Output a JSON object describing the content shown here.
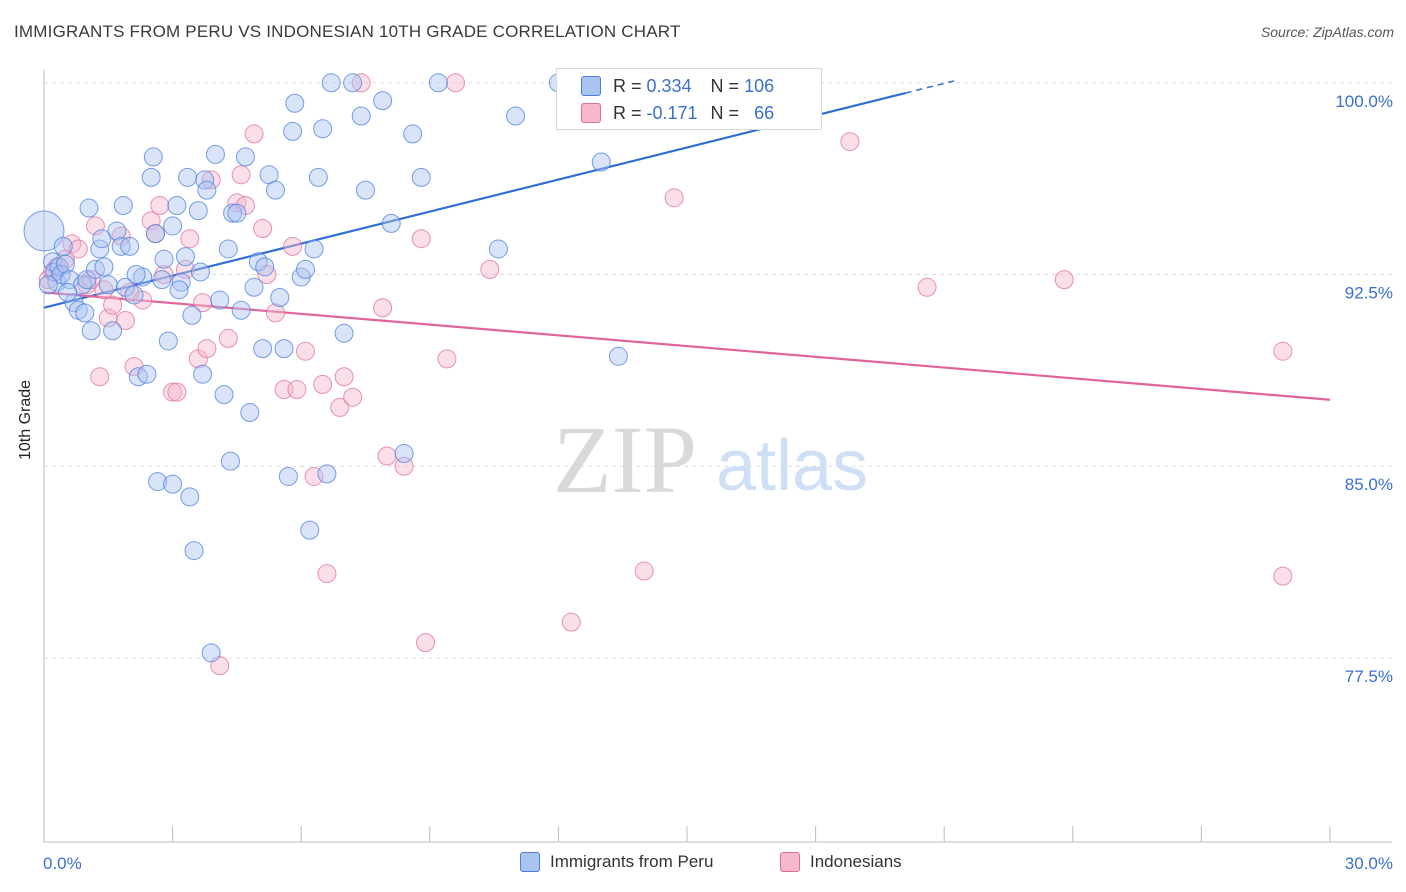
{
  "title": "IMMIGRANTS FROM PERU VS INDONESIAN 10TH GRADE CORRELATION CHART",
  "source": "Source: ZipAtlas.com",
  "colors": {
    "blue": "#4a7fe0",
    "blue_fill": "#aac4f2",
    "pink": "#e26d9b",
    "pink_fill": "#f5b8cc",
    "tick_label": "#3a6fd0"
  },
  "legend_stats": {
    "blue": {
      "r_label": "R =",
      "r_value": "0.334",
      "n_label": "N =",
      "n_value": "106"
    },
    "pink": {
      "r_label": "R =",
      "r_value": "-0.171",
      "n_label": "N =",
      "n_value": "66"
    }
  },
  "chart_data": {
    "type": "scatter",
    "title": "IMMIGRANTS FROM PERU VS INDONESIAN 10TH GRADE CORRELATION CHART",
    "xlabel": "",
    "ylabel": "10th Grade",
    "xlim": [
      0,
      30
    ],
    "ylim": [
      70.3,
      100.5
    ],
    "x_tick_labels": [
      "0.0%",
      "30.0%"
    ],
    "y_ticks": [
      {
        "value": 100.0,
        "label": "100.0%"
      },
      {
        "value": 92.5,
        "label": "92.5%"
      },
      {
        "value": 85.0,
        "label": "85.0%"
      },
      {
        "value": 77.5,
        "label": "77.5%"
      }
    ],
    "grid": true,
    "legend_position": "bottom",
    "watermark": {
      "zip": "ZIP",
      "atlas": "atlas"
    },
    "series": [
      {
        "name": "Immigrants from Peru",
        "color": "#4a7fe0",
        "trend": {
          "x0": 0.0,
          "y0": 91.2,
          "x1": 20.1,
          "y1": 99.6,
          "dash_to_x": 21.3,
          "dash_to_y": 100.1
        },
        "points": [
          [
            0.0,
            94.2
          ],
          [
            0.2,
            93.0
          ],
          [
            0.25,
            92.6
          ],
          [
            0.3,
            92.2
          ],
          [
            0.35,
            92.8
          ],
          [
            0.4,
            92.5
          ],
          [
            0.45,
            93.6
          ],
          [
            0.5,
            92.9
          ],
          [
            0.6,
            92.3
          ],
          [
            0.7,
            91.4
          ],
          [
            0.8,
            91.1
          ],
          [
            0.9,
            92.1
          ],
          [
            1.0,
            92.3
          ],
          [
            1.05,
            95.1
          ],
          [
            1.1,
            90.3
          ],
          [
            1.2,
            92.7
          ],
          [
            1.3,
            93.5
          ],
          [
            1.4,
            92.8
          ],
          [
            1.5,
            92.1
          ],
          [
            1.6,
            90.3
          ],
          [
            1.7,
            94.2
          ],
          [
            1.8,
            93.6
          ],
          [
            1.85,
            95.2
          ],
          [
            1.9,
            92.0
          ],
          [
            2.0,
            93.6
          ],
          [
            2.1,
            91.7
          ],
          [
            2.2,
            88.5
          ],
          [
            2.3,
            92.4
          ],
          [
            2.4,
            88.6
          ],
          [
            2.5,
            96.3
          ],
          [
            2.55,
            97.1
          ],
          [
            2.6,
            94.1
          ],
          [
            2.65,
            84.4
          ],
          [
            2.8,
            93.1
          ],
          [
            2.9,
            89.9
          ],
          [
            3.0,
            94.4
          ],
          [
            3.0,
            84.3
          ],
          [
            3.1,
            95.2
          ],
          [
            3.2,
            92.2
          ],
          [
            3.3,
            93.2
          ],
          [
            3.35,
            96.3
          ],
          [
            3.4,
            83.8
          ],
          [
            3.45,
            90.9
          ],
          [
            3.5,
            81.7
          ],
          [
            3.6,
            95.0
          ],
          [
            3.7,
            88.6
          ],
          [
            3.75,
            96.2
          ],
          [
            3.8,
            95.8
          ],
          [
            3.9,
            77.7
          ],
          [
            4.0,
            97.2
          ],
          [
            4.1,
            91.5
          ],
          [
            4.2,
            87.8
          ],
          [
            4.3,
            93.5
          ],
          [
            4.35,
            85.2
          ],
          [
            4.4,
            94.9
          ],
          [
            4.5,
            94.9
          ],
          [
            4.6,
            91.1
          ],
          [
            4.7,
            97.1
          ],
          [
            4.8,
            87.1
          ],
          [
            4.9,
            92.0
          ],
          [
            5.0,
            93.0
          ],
          [
            5.1,
            89.6
          ],
          [
            5.25,
            96.4
          ],
          [
            5.4,
            95.8
          ],
          [
            5.5,
            91.6
          ],
          [
            5.6,
            89.6
          ],
          [
            5.7,
            84.6
          ],
          [
            5.8,
            98.1
          ],
          [
            5.85,
            99.2
          ],
          [
            6.0,
            92.4
          ],
          [
            6.1,
            92.7
          ],
          [
            6.2,
            82.5
          ],
          [
            6.3,
            93.5
          ],
          [
            6.4,
            96.3
          ],
          [
            6.5,
            98.2
          ],
          [
            6.6,
            84.7
          ],
          [
            6.7,
            100.0
          ],
          [
            7.0,
            90.2
          ],
          [
            7.2,
            100.0
          ],
          [
            7.4,
            98.7
          ],
          [
            7.5,
            95.8
          ],
          [
            7.9,
            99.3
          ],
          [
            8.1,
            94.5
          ],
          [
            8.4,
            85.5
          ],
          [
            8.6,
            98.0
          ],
          [
            8.8,
            96.3
          ],
          [
            9.2,
            100.0
          ],
          [
            10.6,
            93.5
          ],
          [
            11.0,
            98.7
          ],
          [
            12.0,
            100.0
          ],
          [
            13.0,
            96.9
          ],
          [
            13.4,
            89.3
          ],
          [
            14.3,
            100.0
          ],
          [
            15.0,
            99.8
          ],
          [
            15.5,
            99.5
          ],
          [
            16.5,
            100.0
          ],
          [
            17.0,
            100.0
          ],
          [
            0.1,
            92.1
          ],
          [
            0.55,
            91.8
          ],
          [
            0.95,
            91.0
          ],
          [
            1.35,
            93.9
          ],
          [
            2.15,
            92.5
          ],
          [
            2.75,
            92.3
          ],
          [
            3.15,
            91.9
          ],
          [
            3.65,
            92.6
          ],
          [
            5.15,
            92.8
          ]
        ]
      },
      {
        "name": "Indonesians",
        "color": "#e26d9b",
        "trend": {
          "x0": 0.0,
          "y0": 91.8,
          "x1": 30.0,
          "y1": 87.6
        },
        "points": [
          [
            0.1,
            92.3
          ],
          [
            0.3,
            92.8
          ],
          [
            0.5,
            93.1
          ],
          [
            0.65,
            93.7
          ],
          [
            0.8,
            93.5
          ],
          [
            1.0,
            92.1
          ],
          [
            1.2,
            94.4
          ],
          [
            1.3,
            88.5
          ],
          [
            1.4,
            91.9
          ],
          [
            1.5,
            90.8
          ],
          [
            1.6,
            91.3
          ],
          [
            1.8,
            94.0
          ],
          [
            1.9,
            90.7
          ],
          [
            2.0,
            91.8
          ],
          [
            2.1,
            88.9
          ],
          [
            2.3,
            91.5
          ],
          [
            2.5,
            94.6
          ],
          [
            2.6,
            94.1
          ],
          [
            2.7,
            95.2
          ],
          [
            2.8,
            92.5
          ],
          [
            3.0,
            87.9
          ],
          [
            3.1,
            87.9
          ],
          [
            3.3,
            92.7
          ],
          [
            3.4,
            93.9
          ],
          [
            3.6,
            89.2
          ],
          [
            3.7,
            91.4
          ],
          [
            3.8,
            89.6
          ],
          [
            3.9,
            96.2
          ],
          [
            4.1,
            77.2
          ],
          [
            4.3,
            90.0
          ],
          [
            4.5,
            95.3
          ],
          [
            4.6,
            96.4
          ],
          [
            4.7,
            95.2
          ],
          [
            4.9,
            98.0
          ],
          [
            5.1,
            94.3
          ],
          [
            5.2,
            92.5
          ],
          [
            5.4,
            91.0
          ],
          [
            5.6,
            88.0
          ],
          [
            5.8,
            93.6
          ],
          [
            5.9,
            88.0
          ],
          [
            6.1,
            89.5
          ],
          [
            6.3,
            84.6
          ],
          [
            6.5,
            88.2
          ],
          [
            6.6,
            80.8
          ],
          [
            6.9,
            87.3
          ],
          [
            7.0,
            88.5
          ],
          [
            7.2,
            87.7
          ],
          [
            7.4,
            100.0
          ],
          [
            7.9,
            91.2
          ],
          [
            8.0,
            85.4
          ],
          [
            8.4,
            85.0
          ],
          [
            8.8,
            93.9
          ],
          [
            8.9,
            78.1
          ],
          [
            9.4,
            89.2
          ],
          [
            9.6,
            100.0
          ],
          [
            10.4,
            92.7
          ],
          [
            12.3,
            78.9
          ],
          [
            14.0,
            80.9
          ],
          [
            14.7,
            95.5
          ],
          [
            18.8,
            97.7
          ],
          [
            20.6,
            92.0
          ],
          [
            23.8,
            92.3
          ],
          [
            28.9,
            89.5
          ],
          [
            28.9,
            80.7
          ],
          [
            0.2,
            92.6
          ],
          [
            1.1,
            92.3
          ]
        ]
      }
    ]
  },
  "legend_bottom": {
    "items": [
      {
        "label": "Immigrants from Peru"
      },
      {
        "label": "Indonesians"
      }
    ]
  }
}
